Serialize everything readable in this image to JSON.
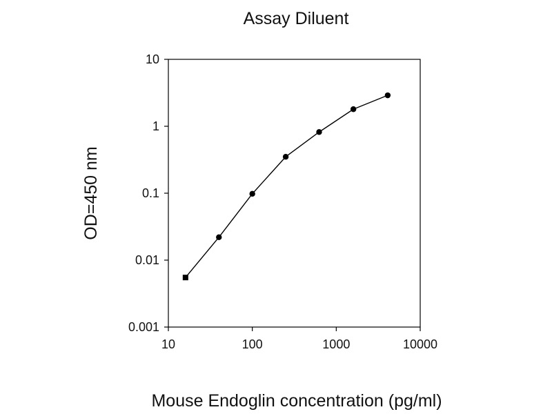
{
  "chart_data": {
    "type": "line",
    "title": "Assay Diluent",
    "xlabel": "Mouse Endoglin concentration (pg/ml)",
    "ylabel": "OD=450 nm",
    "x_scale": "log",
    "y_scale": "log",
    "xlim": [
      10,
      10000
    ],
    "ylim": [
      0.001,
      10
    ],
    "x_ticks": [
      {
        "value": 10,
        "label": "10"
      },
      {
        "value": 100,
        "label": "100"
      },
      {
        "value": 1000,
        "label": "1000"
      },
      {
        "value": 10000,
        "label": "10000"
      }
    ],
    "y_ticks": [
      {
        "value": 0.001,
        "label": "0.001"
      },
      {
        "value": 0.01,
        "label": "0.01"
      },
      {
        "value": 0.1,
        "label": "0.1"
      },
      {
        "value": 1,
        "label": "1"
      },
      {
        "value": 10,
        "label": "10"
      }
    ],
    "grid": false,
    "legend": "none",
    "series": [
      {
        "x": [
          16,
          40,
          100,
          250,
          625,
          1600,
          4100
        ],
        "y": [
          0.0055,
          0.022,
          0.098,
          0.35,
          0.82,
          1.8,
          2.9
        ]
      }
    ],
    "colors": {
      "line": "#000000",
      "marker": "#000000",
      "axes": "#000000",
      "background": "#ffffff"
    }
  }
}
